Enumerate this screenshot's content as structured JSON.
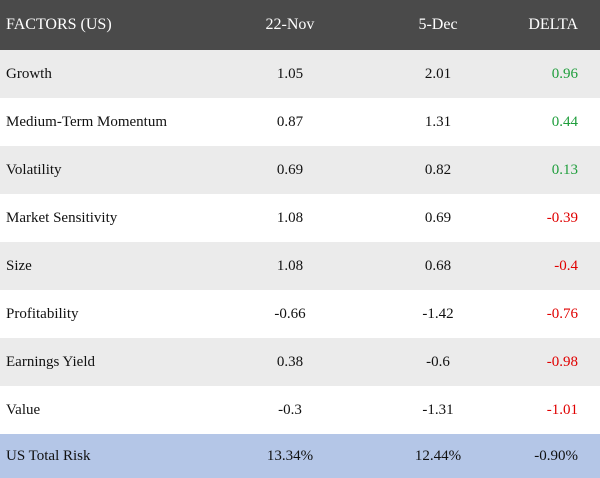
{
  "table": {
    "header": [
      "FACTORS (US)",
      "22-Nov",
      "5-Dec",
      "DELTA"
    ],
    "rows": [
      [
        "Growth",
        1.05,
        2.01,
        0.96
      ],
      [
        "Medium-Term Momentum",
        0.87,
        1.31,
        0.44
      ],
      [
        "Volatility",
        0.69,
        0.82,
        0.13
      ],
      [
        "Market Sensitivity",
        1.08,
        0.69,
        -0.39
      ],
      [
        "Size",
        1.08,
        0.68,
        -0.4
      ],
      [
        "Profitability",
        -0.66,
        -1.42,
        -0.76
      ],
      [
        "Earnings Yield",
        0.38,
        -0.6,
        -0.98
      ],
      [
        "Value",
        -0.3,
        -1.31,
        -1.01
      ]
    ],
    "total": [
      "US Total Risk",
      "13.34%",
      "12.44%",
      "-0.90%"
    ],
    "delta_colors": {
      "positive": "#1f9e3c",
      "negative": "#e00000"
    }
  }
}
